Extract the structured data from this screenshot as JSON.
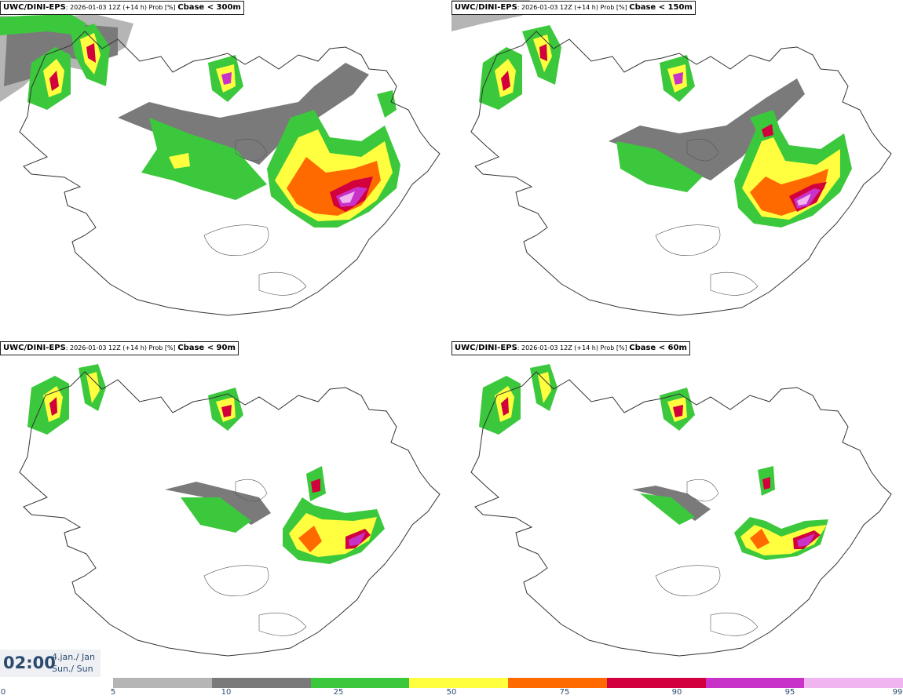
{
  "panels": [
    {
      "model": "UWC/DINI-EPS",
      "run": ": 2026-01-03 12Z (+14 h) Prob [%]",
      "var": "Cbase < 300m"
    },
    {
      "model": "UWC/DINI-EPS",
      "run": ": 2026-01-03 12Z (+14 h) Prob [%]",
      "var": "Cbase < 150m"
    },
    {
      "model": "UWC/DINI-EPS",
      "run": ": 2026-01-03 12Z (+14 h) Prob [%]",
      "var": "Cbase < 90m"
    },
    {
      "model": "UWC/DINI-EPS",
      "run": ": 2026-01-03 12Z (+14 h) Prob [%]",
      "var": "Cbase < 60m"
    }
  ],
  "valid_time": {
    "time": "02:00",
    "date_line": "4.jan./ Jan",
    "day_line": "Sun./ Sun"
  },
  "legend": {
    "ticks": [
      "0",
      "5",
      "10",
      "25",
      "50",
      "75",
      "90",
      "95",
      "99"
    ],
    "colors": [
      "#b5b5b5",
      "#7a7a7a",
      "#3cc83c",
      "#ffff40",
      "#ff6a00",
      "#d2003c",
      "#c832c8",
      "#f0b4f0"
    ]
  }
}
